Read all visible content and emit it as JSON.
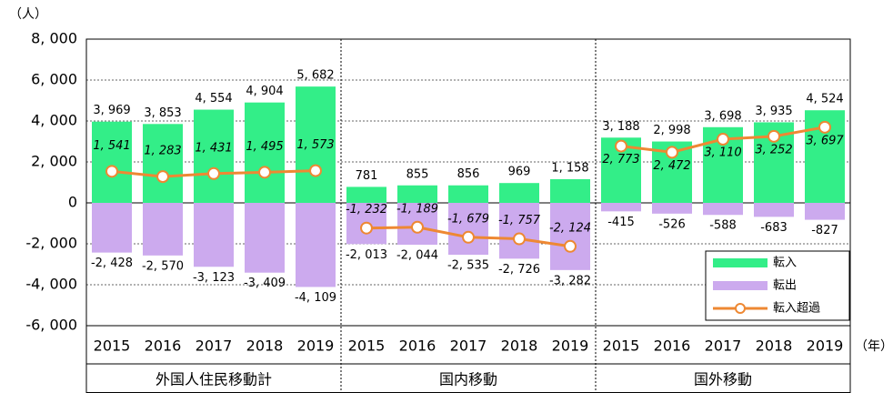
{
  "chart_data": {
    "type": "bar-line",
    "y_unit": "（人）",
    "x_unit": "（年）",
    "ylim": [
      -6000,
      8000
    ],
    "yticks": [
      {
        "value": -6000,
        "label": "-6, 000"
      },
      {
        "value": -4000,
        "label": "-4, 000"
      },
      {
        "value": -2000,
        "label": "-2, 000"
      },
      0,
      {
        "value": 2000,
        "label": "2, 000"
      },
      {
        "value": 4000,
        "label": "4, 000"
      },
      {
        "value": 6000,
        "label": "6, 000"
      },
      {
        "value": 8000,
        "label": "8, 000"
      }
    ],
    "grid": true,
    "legend": "bottom-right",
    "series": [
      {
        "name": "転入",
        "color": "#33ee88"
      },
      {
        "name": "転出",
        "color": "#ccaaee"
      },
      {
        "name": "転入超過",
        "color": "#ee8833"
      }
    ],
    "groups": [
      {
        "name": "外国人住民移動計",
        "categories": [
          "2015",
          "2016",
          "2017",
          "2018",
          "2019"
        ],
        "series": [
          {
            "values": [
              3969,
              3853,
              4554,
              4904,
              5682
            ],
            "value_labels": [
              "3, 969",
              "3, 853",
              "4, 554",
              "4, 904",
              "5, 682"
            ]
          },
          {
            "values": [
              -2428,
              -2570,
              -3123,
              -3409,
              -4109
            ],
            "value_labels": [
              "-2, 428",
              "-2, 570",
              "-3, 123",
              "-3, 409",
              "-4, 109"
            ]
          },
          {
            "values": [
              1541,
              1283,
              1431,
              1495,
              1573
            ],
            "value_labels": [
              "1, 541",
              "1, 283",
              "1, 431",
              "1, 495",
              "1, 573"
            ]
          }
        ]
      },
      {
        "name": "国内移動",
        "categories": [
          "2015",
          "2016",
          "2017",
          "2018",
          "2019"
        ],
        "series": [
          {
            "values": [
              781,
              855,
              856,
              969,
              1158
            ],
            "value_labels": [
              "781",
              "855",
              "856",
              "969",
              "1, 158"
            ]
          },
          {
            "values": [
              -2013,
              -2044,
              -2535,
              -2726,
              -3282
            ],
            "value_labels": [
              "-2, 013",
              "-2, 044",
              "-2, 535",
              "-2, 726",
              "-3, 282"
            ]
          },
          {
            "values": [
              -1232,
              -1189,
              -1679,
              -1757,
              -2124
            ],
            "value_labels": [
              "-1, 232",
              "-1, 189",
              "-1, 679",
              "-1, 757",
              "-2, 124"
            ]
          }
        ]
      },
      {
        "name": "国外移動",
        "categories": [
          "2015",
          "2016",
          "2017",
          "2018",
          "2019"
        ],
        "series": [
          {
            "values": [
              3188,
              2998,
              3698,
              3935,
              4524
            ],
            "value_labels": [
              "3, 188",
              "2, 998",
              "3, 698",
              "3, 935",
              "4, 524"
            ]
          },
          {
            "values": [
              -415,
              -526,
              -588,
              -683,
              -827
            ],
            "value_labels": [
              "-415",
              "-526",
              "-588",
              "-683",
              "-827"
            ]
          },
          {
            "values": [
              2773,
              2472,
              3110,
              3252,
              3697
            ],
            "value_labels": [
              "2, 773",
              "2, 472",
              "3, 110",
              "3, 252",
              "3, 697"
            ]
          }
        ]
      }
    ]
  }
}
